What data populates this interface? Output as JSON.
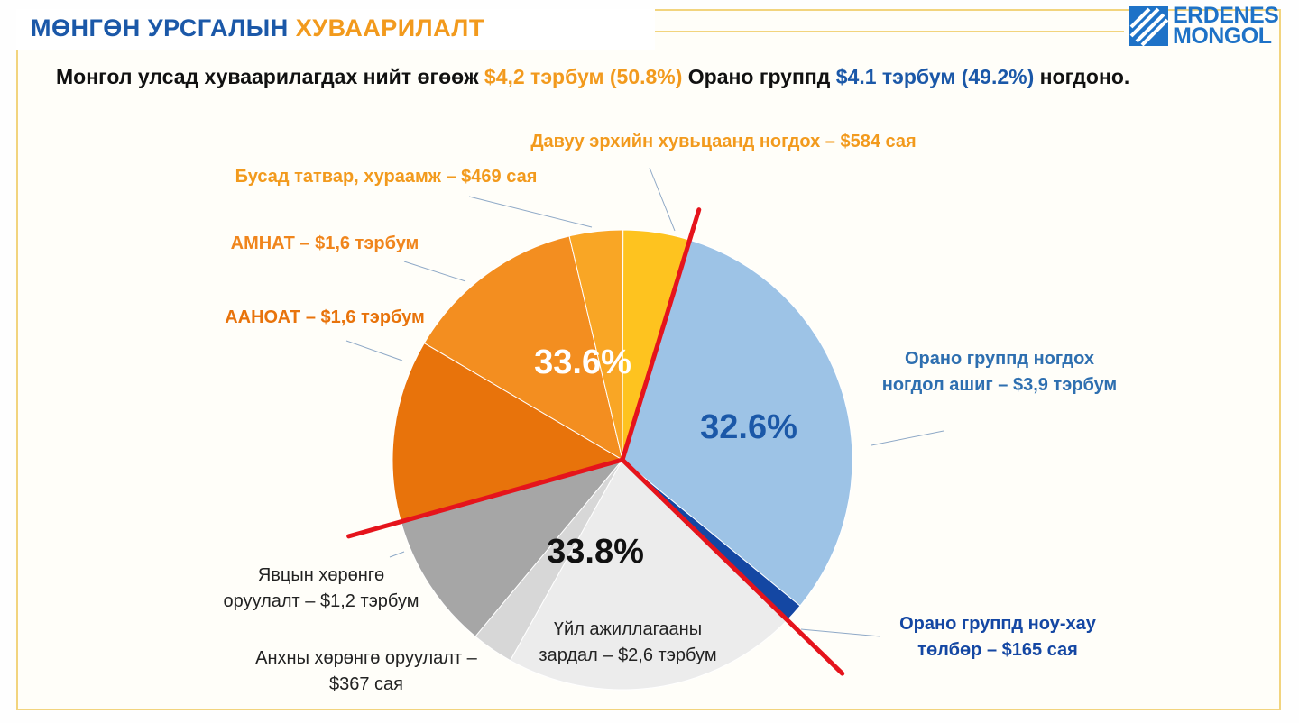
{
  "header": {
    "title_part1": "МӨНГӨН УРСГАЛЫН",
    "title_part2": "ХУВААРИЛАЛТ"
  },
  "logo": {
    "line1": "ERDENES",
    "line2": "MONGOL"
  },
  "subtitle": {
    "prefix": "Монгол улсад хуваарилагдах нийт өгөөж",
    "mongolia_amount": "$4,2 тэрбум (50.8%)",
    "middle": "Орано группд",
    "orano_amount": "$4.1 тэрбум (49.2%)",
    "suffix": "ногдоно."
  },
  "colors": {
    "accent_orange": "#f29a1d",
    "accent_blue": "#1b58a8",
    "frame": "#f2d47e",
    "divider_red": "#e5141c"
  },
  "chart_data": {
    "type": "pie",
    "start_angle_deg": 17,
    "slices": [
      {
        "label_lines": [
          "Орано группд ногдох",
          "ногдол ашиг – $3,9 тэрбум"
        ],
        "value": 3900,
        "unit": "сая $",
        "color": "#9dc3e6",
        "label_color": "#2e6fb0"
      },
      {
        "label_lines": [
          "Орано группд ноу-хау",
          "төлбөр – $165 сая"
        ],
        "value": 165,
        "unit": "сая $",
        "color": "#1447a3",
        "label_color": "#1447a3"
      },
      {
        "label_lines": [
          "Үйл ажиллагааны",
          "зардал – $2,6 тэрбум"
        ],
        "value": 2600,
        "unit": "сая $",
        "color": "#ececec",
        "label_color": "#222222"
      },
      {
        "label_lines": [
          "Анхны хөрөнгө оруулалт –",
          "$367 сая"
        ],
        "value": 367,
        "unit": "сая $",
        "color": "#d7d7d7",
        "label_color": "#222222"
      },
      {
        "label_lines": [
          "Явцын хөрөнгө",
          "оруулалт – $1,2 тэрбум"
        ],
        "value": 1200,
        "unit": "сая $",
        "color": "#a6a6a6",
        "label_color": "#222222"
      },
      {
        "label_lines": [
          "ААНОАТ – $1,6 тэрбум"
        ],
        "value": 1600,
        "unit": "сая $",
        "color": "#e8730b",
        "label_color": "#e8730b"
      },
      {
        "label_lines": [
          "АМНАТ – $1,6 тэрбум"
        ],
        "value": 1600,
        "unit": "сая $",
        "color": "#f38e20",
        "label_color": "#f0851c"
      },
      {
        "label_lines": [
          "Бусад татвар, хураамж – $469 сая"
        ],
        "value": 469,
        "unit": "сая $",
        "color": "#f9a625",
        "label_color": "#f29a1d"
      },
      {
        "label_lines": [
          "Давуу эрхийн хувьцаанд ногдох –  $584 сая"
        ],
        "value": 584,
        "unit": "сая $",
        "color": "#fec31f",
        "label_color": "#f29a1d"
      }
    ],
    "group_labels": [
      {
        "text": "32.6%",
        "color": "#1b58a8"
      },
      {
        "text": "33.8%",
        "color": "#111111"
      },
      {
        "text": "33.6%",
        "color": "#ffffff"
      }
    ]
  }
}
